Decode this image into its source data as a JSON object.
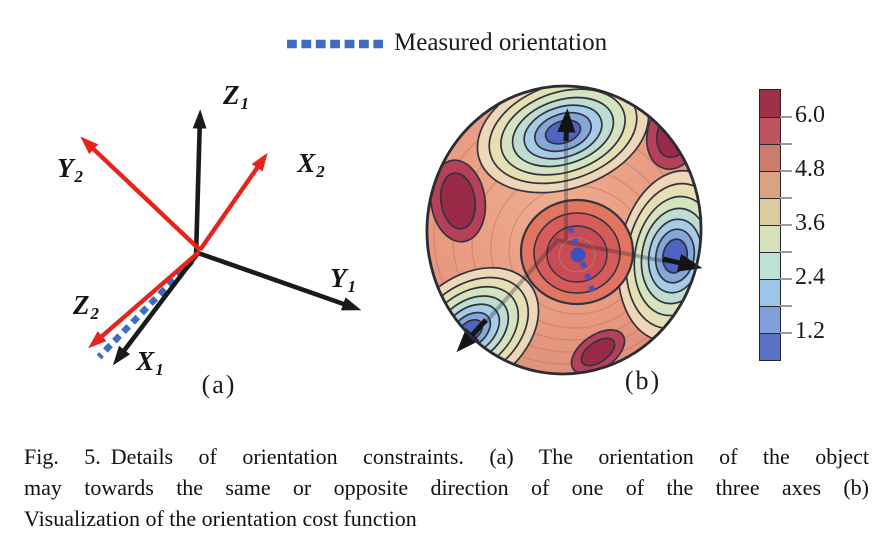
{
  "legend": {
    "label": "Measured orientation",
    "dash_color": "#3e6dbf"
  },
  "panel_a": {
    "label": "(a)",
    "frame1_color": "#1a1a1a",
    "frame2_color": "#e8231c",
    "measured_color": "#3e6dbf",
    "axes": [
      {
        "id": "Z1",
        "main": "Z",
        "sub": "1"
      },
      {
        "id": "X2",
        "main": "X",
        "sub": "2"
      },
      {
        "id": "Y2",
        "main": "Y",
        "sub": "2"
      },
      {
        "id": "Y1",
        "main": "Y",
        "sub": "1"
      },
      {
        "id": "Z2",
        "main": "Z",
        "sub": "2"
      },
      {
        "id": "X1",
        "main": "X",
        "sub": "1"
      }
    ]
  },
  "panel_b": {
    "label": "(b)",
    "colorbar": {
      "tick_labels": [
        "6.0",
        "4.8",
        "3.6",
        "2.4",
        "1.2"
      ],
      "tick_values": [
        6.0,
        4.8,
        3.6,
        2.4,
        1.2
      ],
      "value_range": [
        0.6,
        6.6
      ],
      "levels": 10,
      "segment_colors_top_to_bottom": [
        "#a02f48",
        "#c05360",
        "#cd7b6e",
        "#d7a383",
        "#dccaa0",
        "#d5e2bd",
        "#bfe0d4",
        "#9dc6e8",
        "#7fa0d8",
        "#5a72c4"
      ]
    }
  },
  "caption": {
    "fig_label": "Fig. 5.",
    "line1_rest": "Details of orientation constraints. (a) The orientation of the object",
    "line2": "may towards the same or opposite direction of one of the three axes (b)",
    "line3": "Visualization of the orientation cost function"
  },
  "chart_data": {
    "type": "heatmap",
    "title": "Orientation cost function visualized on a sphere",
    "colorbar": {
      "tick_values": [
        1.2,
        2.4,
        3.6,
        4.8,
        6.0
      ],
      "range": [
        0.6,
        6.6
      ],
      "levels": 10,
      "colormap": "blue (low) to dark red (high)",
      "position": "right"
    },
    "annotations": [
      "three blue minima basins marked by black arrows (axis directions)",
      "dark red maxima between axis directions",
      "measured orientation shown as blue dot with blue dashed trace"
    ]
  }
}
